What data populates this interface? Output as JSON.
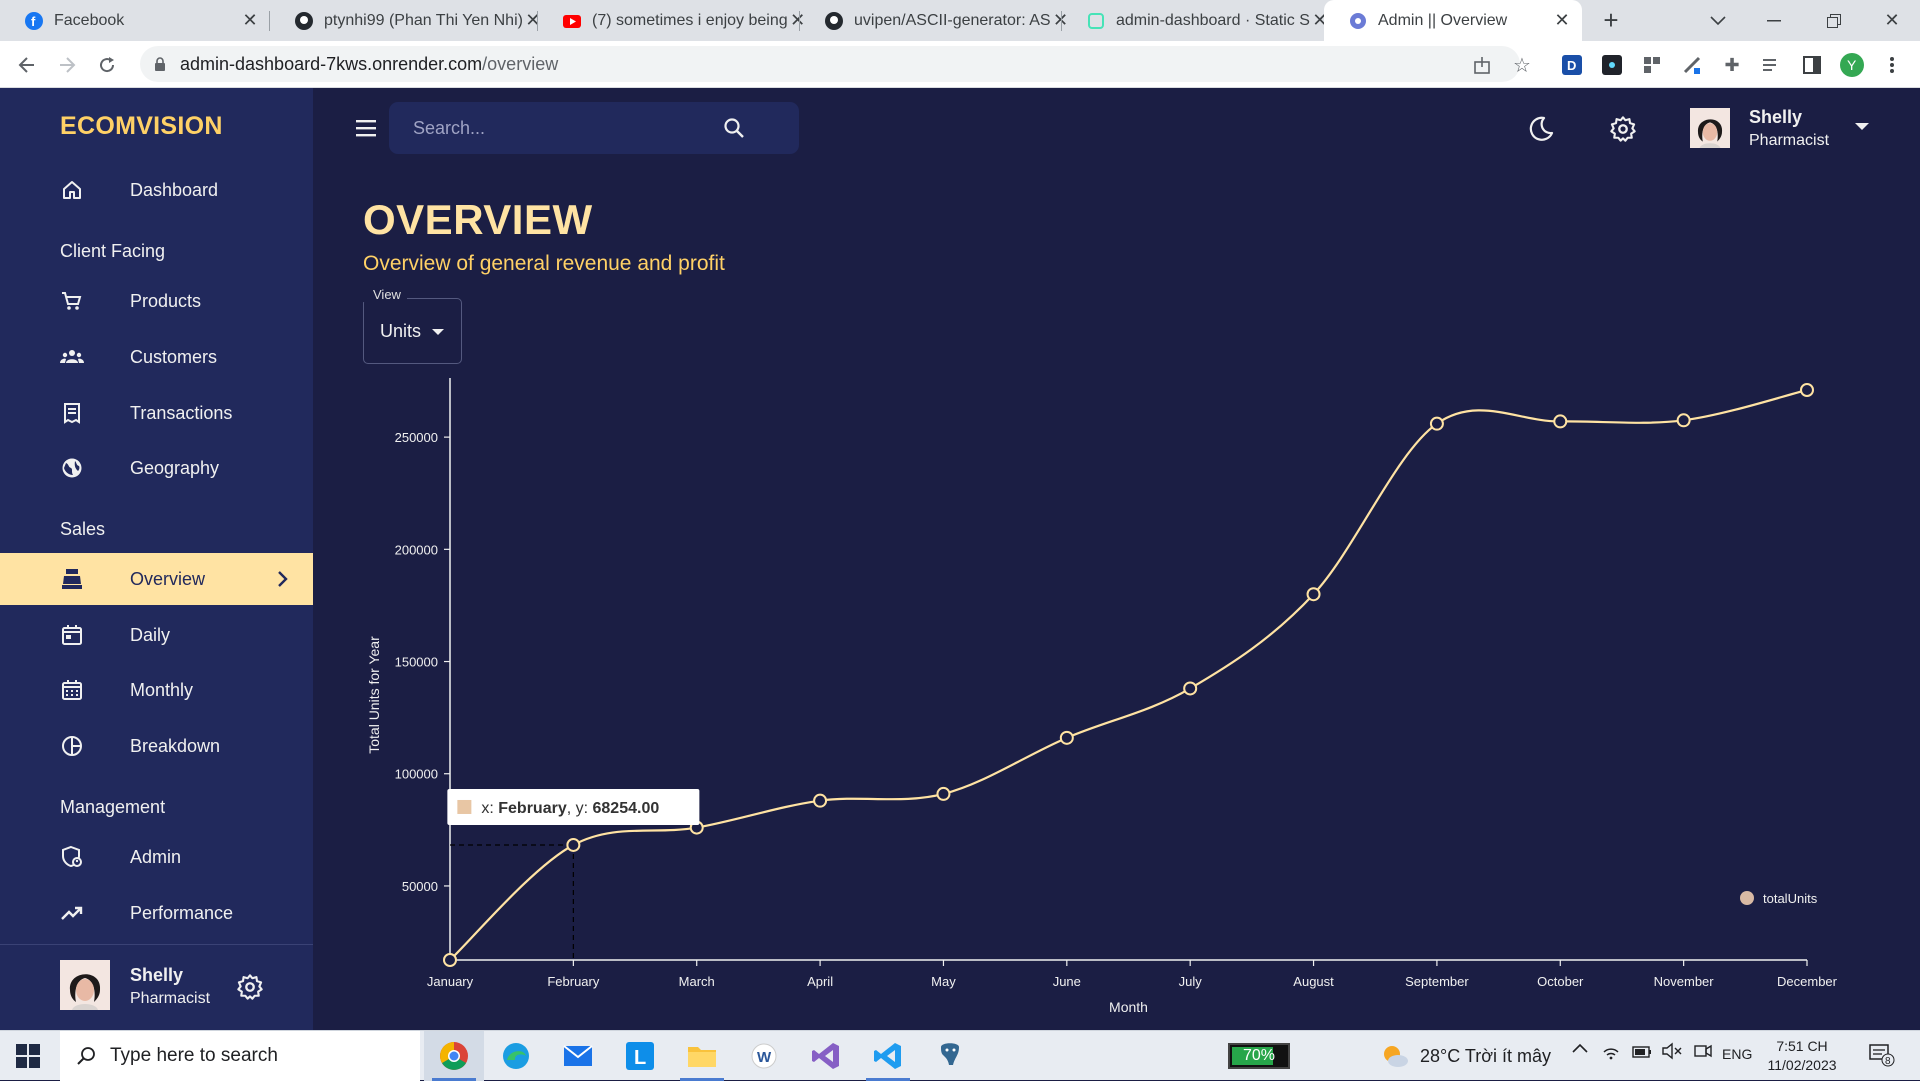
{
  "browser": {
    "tabs": [
      {
        "title": "Facebook"
      },
      {
        "title": "ptynhi99 (Phan Thi Yen Nhi)"
      },
      {
        "title": "(7) sometimes i enjoy being"
      },
      {
        "title": "uvipen/ASCII-generator: AS"
      },
      {
        "title": "admin-dashboard · Static S"
      },
      {
        "title": "Admin || Overview"
      }
    ],
    "url_host": "admin-dashboard-7kws.onrender.com",
    "url_path": "/overview",
    "profile_initial": "Y"
  },
  "sidebar": {
    "brand": "ECOMVISION",
    "items": [
      {
        "label": "Dashboard",
        "icon": "home-icon"
      },
      {
        "label": "Products",
        "icon": "shopping-cart-icon"
      },
      {
        "label": "Customers",
        "icon": "groups-icon"
      },
      {
        "label": "Transactions",
        "icon": "receipt-icon"
      },
      {
        "label": "Geography",
        "icon": "globe-icon"
      },
      {
        "label": "Overview",
        "icon": "point-of-sale-icon"
      },
      {
        "label": "Daily",
        "icon": "calendar-today-icon"
      },
      {
        "label": "Monthly",
        "icon": "calendar-month-icon"
      },
      {
        "label": "Breakdown",
        "icon": "pie-chart-icon"
      },
      {
        "label": "Admin",
        "icon": "admin-icon"
      },
      {
        "label": "Performance",
        "icon": "trending-up-icon"
      }
    ],
    "sections": {
      "client": "Client Facing",
      "sales": "Sales",
      "management": "Management"
    },
    "active": "Overview",
    "user": {
      "name": "Shelly",
      "role": "Pharmacist"
    }
  },
  "topbar": {
    "search_placeholder": "Search...",
    "user": {
      "name": "Shelly",
      "role": "Pharmacist"
    }
  },
  "page": {
    "title": "OVERVIEW",
    "subtitle": "Overview of general revenue and profit",
    "view_label": "View",
    "view_value": "Units"
  },
  "chart_data": {
    "type": "line",
    "x": [
      "January",
      "February",
      "March",
      "April",
      "May",
      "June",
      "July",
      "August",
      "September",
      "October",
      "November",
      "December"
    ],
    "series": [
      {
        "name": "totalUnits",
        "values": [
          17000,
          68254,
          76000,
          88000,
          91000,
          116000,
          138000,
          180000,
          256000,
          257000,
          257500,
          271000
        ]
      }
    ],
    "xlabel": "Month",
    "ylabel": "Total Units for Year",
    "yticks": [
      50000,
      100000,
      150000,
      200000,
      250000
    ],
    "ylim": [
      17000,
      271000
    ],
    "grid": false,
    "legend": "bottom-right",
    "line_color": "#ffe3a3",
    "tooltip": {
      "prefix_x": "x: ",
      "x": "February",
      "prefix_y": ", y: ",
      "y": "68254.00",
      "index": 1
    }
  },
  "taskbar": {
    "search_label": "Type here to search",
    "battery": "70%",
    "battery_level": 0.7,
    "weather": "28°C Trời ít mây",
    "lang": "ENG",
    "time": "7:51 CH",
    "date": "11/02/2023",
    "notifications": "8"
  }
}
